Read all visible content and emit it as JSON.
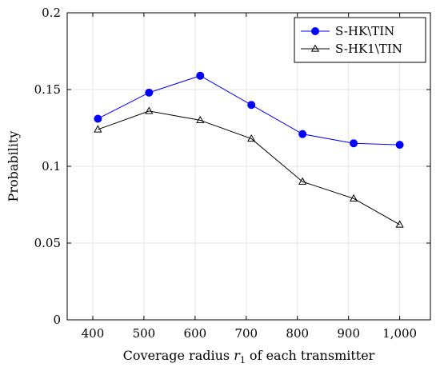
{
  "chart_data": {
    "type": "line",
    "xlabel": "Coverage radius r1 of each transmitter",
    "xlabel_parts": {
      "prefix": "Coverage radius ",
      "var": "r",
      "sub": "1",
      "suffix": " of each transmitter"
    },
    "ylabel": "Probability",
    "xlim": [
      350,
      1060
    ],
    "ylim": [
      0,
      0.2
    ],
    "xticks": [
      400,
      500,
      600,
      700,
      800,
      900,
      1000
    ],
    "xtick_labels": [
      "400",
      "500",
      "600",
      "700",
      "800",
      "900",
      "1,000"
    ],
    "yticks": [
      0,
      0.05,
      0.1,
      0.15,
      0.2
    ],
    "ytick_labels": [
      "0",
      "0.05",
      "0.1",
      "0.15",
      "0.2"
    ],
    "grid": true,
    "legend_position": "top-right",
    "series": [
      {
        "name": "S-HK\\TIN",
        "color": "#0000ff",
        "marker": "circle",
        "x": [
          410,
          510,
          610,
          710,
          810,
          910,
          1000
        ],
        "y": [
          0.131,
          0.148,
          0.159,
          0.14,
          0.121,
          0.115,
          0.114
        ]
      },
      {
        "name": "S-HK1\\TIN",
        "color": "#000000",
        "marker": "triangle",
        "x": [
          410,
          510,
          610,
          710,
          810,
          910,
          1000
        ],
        "y": [
          0.124,
          0.136,
          0.13,
          0.118,
          0.09,
          0.079,
          0.062
        ]
      }
    ]
  }
}
